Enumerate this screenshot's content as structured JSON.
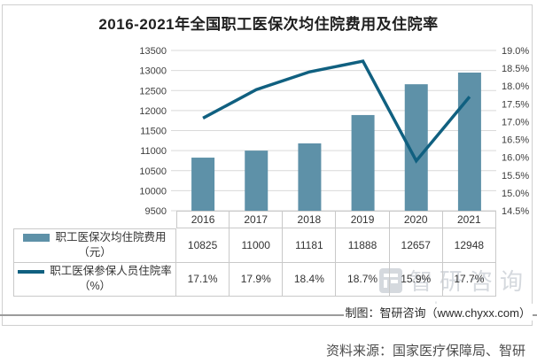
{
  "title": "2016-2021年全国职工医保次均住院费用及住院率",
  "chart_data": {
    "type": "bar+line",
    "categories": [
      "2016",
      "2017",
      "2018",
      "2019",
      "2020",
      "2021"
    ],
    "series": [
      {
        "name": "职工医保次均住院费用（元）",
        "type": "bar",
        "axis": "left",
        "color": "#5e91a8",
        "values": [
          10825,
          11000,
          11181,
          11888,
          12657,
          12948
        ]
      },
      {
        "name": "职工医保参保人员住院率（%）",
        "type": "line",
        "axis": "right",
        "color": "#106080",
        "values": [
          17.1,
          17.9,
          18.4,
          18.7,
          15.9,
          17.7
        ]
      }
    ],
    "left_axis": {
      "min": 9500,
      "max": 13500,
      "step": 500
    },
    "right_axis": {
      "min": 14.5,
      "max": 19.0,
      "step": 0.5,
      "suffix": "%"
    },
    "grid": "horizontal-on",
    "legend_position": "bottom-table"
  },
  "table": {
    "rows": [
      {
        "label": "职工医保次均住院费用",
        "unit": "（元）",
        "values": [
          "10825",
          "11000",
          "11181",
          "11888",
          "12657",
          "12948"
        ]
      },
      {
        "label": "职工医保参保人员住院率",
        "unit": "（%）",
        "values": [
          "17.1%",
          "17.9%",
          "18.4%",
          "18.7%",
          "15.9%",
          "17.7%"
        ]
      }
    ]
  },
  "watermark": {
    "brand": "智研咨询",
    "url": "www.chyxx.com"
  },
  "footer": {
    "credit": "制图：智研咨询（www.chyxx.com）",
    "source": "资料来源：国家医疗保障局、智研"
  },
  "colors": {
    "bar": "#5e91a8",
    "line": "#106080",
    "grid": "#d9d9d9",
    "border": "#c9c9c9",
    "rule": "#9b9b9b",
    "watermark": "#d5d9de"
  }
}
